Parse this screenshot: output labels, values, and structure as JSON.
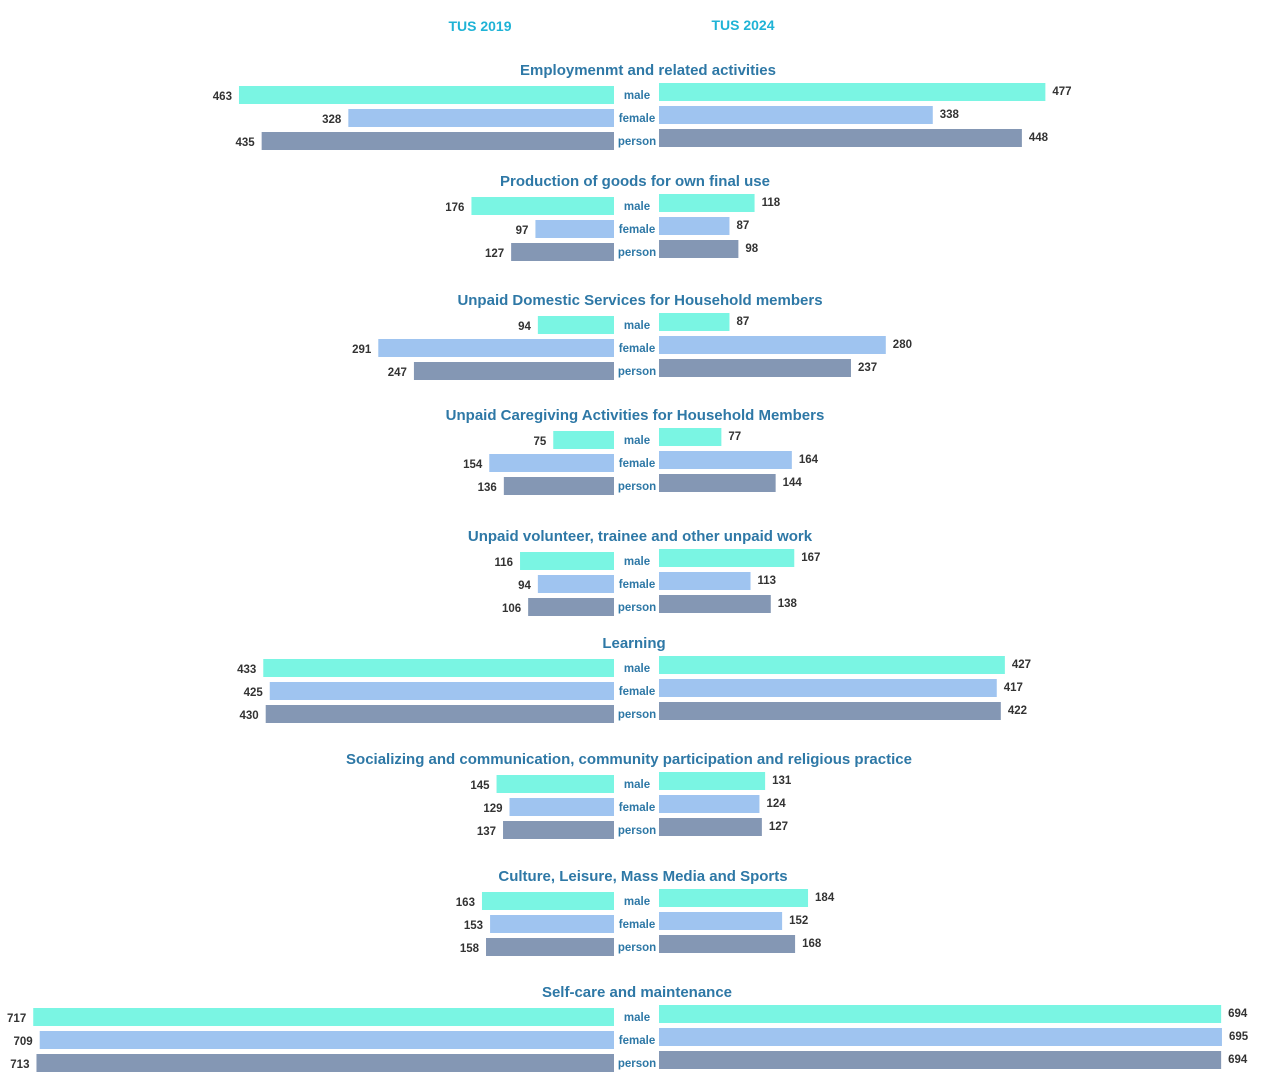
{
  "chart_data": {
    "type": "bar",
    "orientation": "horizontal-butterfly",
    "headers": {
      "left": "TUS 2019",
      "right": "TUS 2024"
    },
    "categories": [
      "male",
      "female",
      "person"
    ],
    "colors": {
      "male": "#7af5e3",
      "female": "#9fc4f0",
      "person": "#8497b4"
    },
    "groups": [
      {
        "title": "Employmenmt and related activities",
        "tus2019": [
          463,
          328,
          435
        ],
        "tus2024": [
          477,
          338,
          448
        ]
      },
      {
        "title": "Production of goods for own final use",
        "tus2019": [
          176,
          97,
          127
        ],
        "tus2024": [
          118,
          87,
          98
        ]
      },
      {
        "title": "Unpaid Domestic Services for Household members",
        "tus2019": [
          94,
          291,
          247
        ],
        "tus2024": [
          87,
          280,
          237
        ]
      },
      {
        "title": "Unpaid Caregiving Activities for Household Members",
        "tus2019": [
          75,
          154,
          136
        ],
        "tus2024": [
          77,
          164,
          144
        ]
      },
      {
        "title": "Unpaid volunteer, trainee and other unpaid work",
        "tus2019": [
          116,
          94,
          106
        ],
        "tus2024": [
          167,
          113,
          138
        ]
      },
      {
        "title": "Learning",
        "tus2019": [
          433,
          425,
          430
        ],
        "tus2024": [
          427,
          417,
          422
        ]
      },
      {
        "title": "Socializing and communication, community participation and religious practice",
        "tus2019": [
          145,
          129,
          137
        ],
        "tus2024": [
          131,
          124,
          127
        ]
      },
      {
        "title": "Culture, Leisure, Mass Media and Sports",
        "tus2019": [
          163,
          153,
          158
        ],
        "tus2024": [
          184,
          152,
          168
        ]
      },
      {
        "title": "Self-care and maintenance",
        "tus2019": [
          717,
          709,
          713
        ],
        "tus2024": [
          694,
          695,
          694
        ]
      }
    ]
  }
}
